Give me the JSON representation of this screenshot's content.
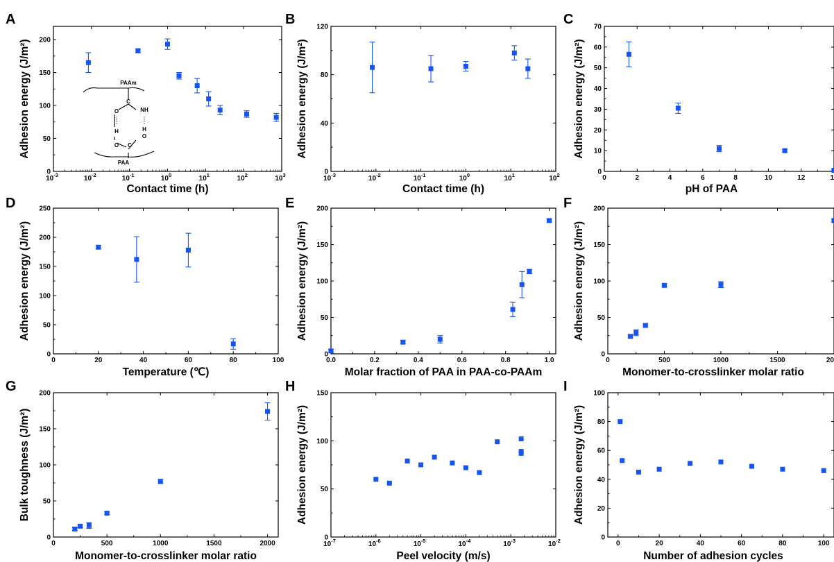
{
  "colors": {
    "marker": "#1554f0",
    "axis": "#000000"
  },
  "inset": {
    "top_label": "PAAm",
    "bottom_label": "PAA",
    "atoms": [
      "O",
      "C",
      "NH",
      "H",
      "H",
      "O",
      "C",
      "O"
    ]
  },
  "chart_data": [
    {
      "panel": "A",
      "type": "scatter",
      "xscale": "log",
      "xlabel": "Contact time (h)",
      "ylabel": "Adhesion energy (J/m²)",
      "xlim": [
        0.001,
        1000
      ],
      "ylim": [
        0,
        220
      ],
      "xticks": [
        0.001,
        0.01,
        0.1,
        1,
        10,
        100,
        1000
      ],
      "xtick_labels": [
        [
          "10",
          "-3"
        ],
        [
          "10",
          "-2"
        ],
        [
          "10",
          "-1"
        ],
        [
          "10",
          "0"
        ],
        [
          "10",
          "1"
        ],
        [
          "10",
          "2"
        ],
        [
          "10",
          "3"
        ]
      ],
      "yticks": [
        0,
        50,
        100,
        150,
        200
      ],
      "x": [
        0.0083,
        0.167,
        1,
        2,
        6,
        12,
        24,
        120,
        720
      ],
      "y": [
        165,
        183,
        193,
        145,
        130,
        110,
        93,
        87,
        82
      ],
      "yerr": [
        15,
        3,
        8,
        5,
        11,
        11,
        7,
        5,
        6
      ]
    },
    {
      "panel": "B",
      "type": "scatter",
      "xscale": "log",
      "xlabel": "Contact time (h)",
      "ylabel": "Adhesion energy (J/m²)",
      "xlim": [
        0.001,
        100
      ],
      "ylim": [
        0,
        120
      ],
      "xticks": [
        0.001,
        0.01,
        0.1,
        1,
        10,
        100
      ],
      "xtick_labels": [
        [
          "10",
          "-3"
        ],
        [
          "10",
          "-2"
        ],
        [
          "10",
          "-1"
        ],
        [
          "10",
          "0"
        ],
        [
          "10",
          "1"
        ],
        [
          "10",
          "2"
        ]
      ],
      "yticks": [
        0,
        40,
        80,
        120
      ],
      "x": [
        0.0083,
        0.167,
        1,
        12,
        24
      ],
      "y": [
        86,
        85,
        87,
        98,
        85
      ],
      "yerr": [
        21,
        11,
        4,
        6,
        8
      ]
    },
    {
      "panel": "C",
      "type": "scatter",
      "xscale": "linear",
      "xlabel": "pH of PAA",
      "ylabel": "Adhesion energy (J/m²)",
      "xlim": [
        0,
        14
      ],
      "ylim": [
        0,
        70
      ],
      "xticks": [
        0,
        2,
        4,
        6,
        8,
        10,
        12,
        14
      ],
      "yticks": [
        0,
        10,
        20,
        30,
        40,
        50,
        60,
        70
      ],
      "x": [
        1.5,
        4.5,
        7,
        11,
        14
      ],
      "y": [
        56.5,
        30.5,
        11,
        10,
        0.5
      ],
      "yerr": [
        6,
        2.5,
        1.5,
        0.7,
        0.3
      ]
    },
    {
      "panel": "D",
      "type": "scatter",
      "xscale": "linear",
      "xlabel": "Temperature (℃)",
      "ylabel": "Adhesion energy (J/m²)",
      "xlim": [
        0,
        100
      ],
      "ylim": [
        0,
        250
      ],
      "xticks": [
        0,
        20,
        40,
        60,
        80,
        100
      ],
      "yticks": [
        0,
        50,
        100,
        150,
        200,
        250
      ],
      "x": [
        20,
        37,
        60,
        80
      ],
      "y": [
        183,
        162,
        178,
        17
      ],
      "yerr": [
        3,
        39,
        29,
        9
      ]
    },
    {
      "panel": "E",
      "type": "scatter",
      "xscale": "linear",
      "xlabel": "Molar fraction of PAA in PAA-co-PAAm",
      "ylabel": "Adhesion energy (J/m²)",
      "xlim": [
        0,
        1.03
      ],
      "ylim": [
        0,
        200
      ],
      "xticks": [
        0.0,
        0.2,
        0.4,
        0.6,
        0.8,
        1.0
      ],
      "xtick_labels": [
        "0.0",
        "0.2",
        "0.4",
        "0.6",
        "0.8",
        "1.0"
      ],
      "yticks": [
        0,
        50,
        100,
        150,
        200
      ],
      "x": [
        0,
        0.33,
        0.5,
        0.833,
        0.875,
        0.909,
        1.0
      ],
      "y": [
        4,
        16,
        20,
        61,
        95,
        113,
        183
      ],
      "yerr": [
        2,
        2,
        5,
        10,
        18,
        3,
        2
      ]
    },
    {
      "panel": "F",
      "type": "scatter",
      "xscale": "linear",
      "xlabel": "Monomer-to-crosslinker molar ratio",
      "ylabel": "Adhesion energy (J/m²)",
      "xlim": [
        0,
        2000
      ],
      "ylim": [
        0,
        200
      ],
      "xticks": [
        0,
        500,
        1000,
        1500,
        2000
      ],
      "yticks": [
        0,
        50,
        100,
        150,
        200
      ],
      "x": [
        200,
        250,
        333,
        500,
        1000,
        2000
      ],
      "y": [
        24,
        29,
        39,
        94,
        95,
        183
      ],
      "yerr": [
        2,
        4,
        2,
        2,
        4,
        2
      ]
    },
    {
      "panel": "G",
      "type": "scatter",
      "xscale": "linear",
      "xlabel": "Monomer-to-crosslinker molar ratio",
      "ylabel": "Bulk toughness (J/m²)",
      "xlim": [
        0,
        2100
      ],
      "ylim": [
        0,
        200
      ],
      "xticks": [
        0,
        500,
        1000,
        1500,
        2000
      ],
      "yticks": [
        0,
        50,
        100,
        150,
        200
      ],
      "x": [
        200,
        250,
        333,
        500,
        1000,
        2000
      ],
      "y": [
        11,
        15,
        16,
        33,
        77,
        174
      ],
      "yerr": [
        2,
        2,
        4,
        2,
        3,
        12
      ]
    },
    {
      "panel": "H",
      "type": "scatter",
      "xscale": "log",
      "xlabel": "Peel velocity (m/s)",
      "ylabel": "Adhesion energy (J/m²)",
      "xlim": [
        1e-07,
        0.01
      ],
      "ylim": [
        0,
        150
      ],
      "xticks": [
        1e-07,
        1e-06,
        1e-05,
        0.0001,
        0.001,
        0.01
      ],
      "xtick_labels": [
        [
          "10",
          "-7"
        ],
        [
          "10",
          "-6"
        ],
        [
          "10",
          "-5"
        ],
        [
          "10",
          "-4"
        ],
        [
          "10",
          "-3"
        ],
        [
          "10",
          "-2"
        ]
      ],
      "yticks": [
        0,
        50,
        100,
        150
      ],
      "x": [
        1e-06,
        2e-06,
        5e-06,
        1e-05,
        2e-05,
        5e-05,
        0.0001,
        0.0002,
        0.0005,
        0.0017,
        0.0017,
        0.0017
      ],
      "y": [
        60,
        56,
        79,
        75,
        83,
        77,
        72,
        67,
        99,
        102,
        89,
        87
      ],
      "yerr": [
        0,
        0,
        0,
        0,
        0,
        0,
        0,
        0,
        0,
        0,
        0,
        0
      ]
    },
    {
      "panel": "I",
      "type": "scatter",
      "xscale": "linear",
      "xlabel": "Number of adhesion cycles",
      "ylabel": "Adhesion energy (J/m²)",
      "xlim": [
        -5,
        105
      ],
      "ylim": [
        0,
        100
      ],
      "xticks": [
        0,
        20,
        40,
        60,
        80,
        100
      ],
      "yticks": [
        0,
        20,
        40,
        60,
        80,
        100
      ],
      "x": [
        1,
        2,
        10,
        20,
        35,
        50,
        65,
        80,
        100
      ],
      "y": [
        80,
        53,
        45,
        47,
        51,
        52,
        49,
        47,
        46
      ],
      "yerr": [
        0,
        0,
        0,
        0,
        0,
        0,
        0,
        0,
        0
      ]
    }
  ]
}
